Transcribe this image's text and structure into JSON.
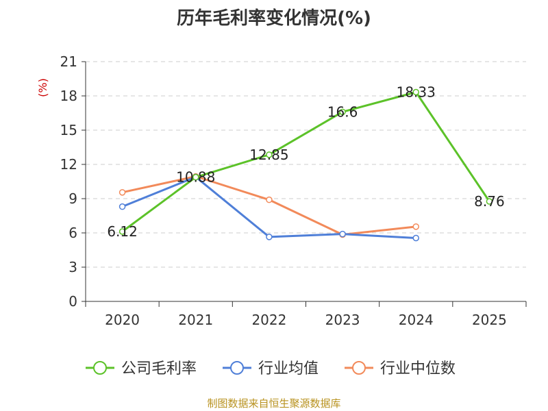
{
  "chart_data": {
    "type": "line",
    "title": "历年毛利率变化情况(%)",
    "ylabel": "(%)",
    "categories": [
      "2020",
      "2021",
      "2022",
      "2023",
      "2024",
      "2025"
    ],
    "ylim": [
      0,
      21
    ],
    "yticks": [
      0,
      3,
      6,
      9,
      12,
      15,
      18,
      21
    ],
    "grid": true,
    "legend_position": "bottom",
    "series": [
      {
        "name": "公司毛利率",
        "color": "#5cc229",
        "values": [
          6.12,
          10.88,
          12.85,
          16.6,
          18.33,
          8.76
        ],
        "labels": [
          "6.12",
          "10.88",
          "12.85",
          "16.6",
          "18.33",
          "8.76"
        ]
      },
      {
        "name": "行业均值",
        "color": "#4f7fd8",
        "values": [
          8.3,
          10.9,
          5.65,
          5.9,
          5.55,
          null
        ]
      },
      {
        "name": "行业中位数",
        "color": "#f28a5a",
        "values": [
          9.55,
          10.95,
          8.9,
          5.85,
          6.55,
          null
        ]
      }
    ]
  },
  "source": "制图数据来自恒生聚源数据库"
}
